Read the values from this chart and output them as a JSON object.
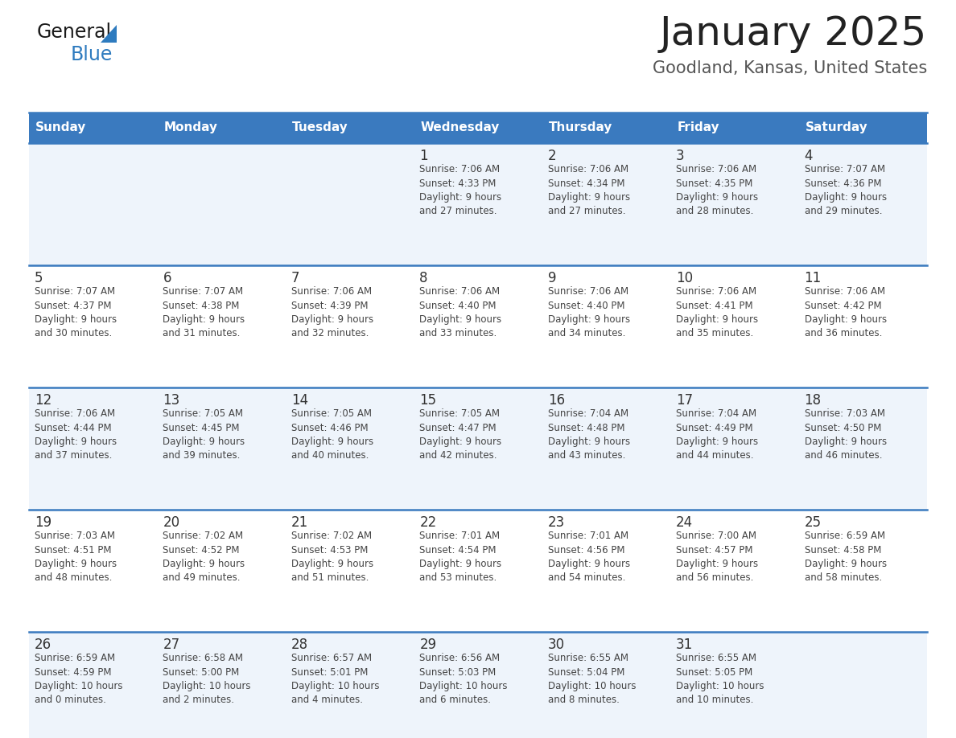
{
  "title": "January 2025",
  "subtitle": "Goodland, Kansas, United States",
  "header_bg_color": "#3a7abf",
  "header_text_color": "#ffffff",
  "row_bg_even": "#eef4fb",
  "row_bg_odd": "#ffffff",
  "day_num_color": "#333333",
  "cell_text_color": "#444444",
  "border_color": "#3a7abf",
  "days_of_week": [
    "Sunday",
    "Monday",
    "Tuesday",
    "Wednesday",
    "Thursday",
    "Friday",
    "Saturday"
  ],
  "calendar": [
    [
      {
        "day": "",
        "info": ""
      },
      {
        "day": "",
        "info": ""
      },
      {
        "day": "",
        "info": ""
      },
      {
        "day": "1",
        "info": "Sunrise: 7:06 AM\nSunset: 4:33 PM\nDaylight: 9 hours\nand 27 minutes."
      },
      {
        "day": "2",
        "info": "Sunrise: 7:06 AM\nSunset: 4:34 PM\nDaylight: 9 hours\nand 27 minutes."
      },
      {
        "day": "3",
        "info": "Sunrise: 7:06 AM\nSunset: 4:35 PM\nDaylight: 9 hours\nand 28 minutes."
      },
      {
        "day": "4",
        "info": "Sunrise: 7:07 AM\nSunset: 4:36 PM\nDaylight: 9 hours\nand 29 minutes."
      }
    ],
    [
      {
        "day": "5",
        "info": "Sunrise: 7:07 AM\nSunset: 4:37 PM\nDaylight: 9 hours\nand 30 minutes."
      },
      {
        "day": "6",
        "info": "Sunrise: 7:07 AM\nSunset: 4:38 PM\nDaylight: 9 hours\nand 31 minutes."
      },
      {
        "day": "7",
        "info": "Sunrise: 7:06 AM\nSunset: 4:39 PM\nDaylight: 9 hours\nand 32 minutes."
      },
      {
        "day": "8",
        "info": "Sunrise: 7:06 AM\nSunset: 4:40 PM\nDaylight: 9 hours\nand 33 minutes."
      },
      {
        "day": "9",
        "info": "Sunrise: 7:06 AM\nSunset: 4:40 PM\nDaylight: 9 hours\nand 34 minutes."
      },
      {
        "day": "10",
        "info": "Sunrise: 7:06 AM\nSunset: 4:41 PM\nDaylight: 9 hours\nand 35 minutes."
      },
      {
        "day": "11",
        "info": "Sunrise: 7:06 AM\nSunset: 4:42 PM\nDaylight: 9 hours\nand 36 minutes."
      }
    ],
    [
      {
        "day": "12",
        "info": "Sunrise: 7:06 AM\nSunset: 4:44 PM\nDaylight: 9 hours\nand 37 minutes."
      },
      {
        "day": "13",
        "info": "Sunrise: 7:05 AM\nSunset: 4:45 PM\nDaylight: 9 hours\nand 39 minutes."
      },
      {
        "day": "14",
        "info": "Sunrise: 7:05 AM\nSunset: 4:46 PM\nDaylight: 9 hours\nand 40 minutes."
      },
      {
        "day": "15",
        "info": "Sunrise: 7:05 AM\nSunset: 4:47 PM\nDaylight: 9 hours\nand 42 minutes."
      },
      {
        "day": "16",
        "info": "Sunrise: 7:04 AM\nSunset: 4:48 PM\nDaylight: 9 hours\nand 43 minutes."
      },
      {
        "day": "17",
        "info": "Sunrise: 7:04 AM\nSunset: 4:49 PM\nDaylight: 9 hours\nand 44 minutes."
      },
      {
        "day": "18",
        "info": "Sunrise: 7:03 AM\nSunset: 4:50 PM\nDaylight: 9 hours\nand 46 minutes."
      }
    ],
    [
      {
        "day": "19",
        "info": "Sunrise: 7:03 AM\nSunset: 4:51 PM\nDaylight: 9 hours\nand 48 minutes."
      },
      {
        "day": "20",
        "info": "Sunrise: 7:02 AM\nSunset: 4:52 PM\nDaylight: 9 hours\nand 49 minutes."
      },
      {
        "day": "21",
        "info": "Sunrise: 7:02 AM\nSunset: 4:53 PM\nDaylight: 9 hours\nand 51 minutes."
      },
      {
        "day": "22",
        "info": "Sunrise: 7:01 AM\nSunset: 4:54 PM\nDaylight: 9 hours\nand 53 minutes."
      },
      {
        "day": "23",
        "info": "Sunrise: 7:01 AM\nSunset: 4:56 PM\nDaylight: 9 hours\nand 54 minutes."
      },
      {
        "day": "24",
        "info": "Sunrise: 7:00 AM\nSunset: 4:57 PM\nDaylight: 9 hours\nand 56 minutes."
      },
      {
        "day": "25",
        "info": "Sunrise: 6:59 AM\nSunset: 4:58 PM\nDaylight: 9 hours\nand 58 minutes."
      }
    ],
    [
      {
        "day": "26",
        "info": "Sunrise: 6:59 AM\nSunset: 4:59 PM\nDaylight: 10 hours\nand 0 minutes."
      },
      {
        "day": "27",
        "info": "Sunrise: 6:58 AM\nSunset: 5:00 PM\nDaylight: 10 hours\nand 2 minutes."
      },
      {
        "day": "28",
        "info": "Sunrise: 6:57 AM\nSunset: 5:01 PM\nDaylight: 10 hours\nand 4 minutes."
      },
      {
        "day": "29",
        "info": "Sunrise: 6:56 AM\nSunset: 5:03 PM\nDaylight: 10 hours\nand 6 minutes."
      },
      {
        "day": "30",
        "info": "Sunrise: 6:55 AM\nSunset: 5:04 PM\nDaylight: 10 hours\nand 8 minutes."
      },
      {
        "day": "31",
        "info": "Sunrise: 6:55 AM\nSunset: 5:05 PM\nDaylight: 10 hours\nand 10 minutes."
      },
      {
        "day": "",
        "info": ""
      }
    ]
  ],
  "logo_text_general": "General",
  "logo_text_blue": "Blue",
  "logo_triangle_color": "#2e7bbf",
  "title_fontsize": 36,
  "subtitle_fontsize": 15,
  "header_fontsize": 11,
  "day_num_fontsize": 12,
  "cell_fontsize": 8.5
}
